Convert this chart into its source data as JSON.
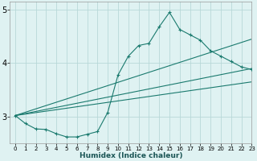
{
  "xlabel": "Humidex (Indice chaleur)",
  "xlim": [
    -0.5,
    23
  ],
  "ylim": [
    2.5,
    5.15
  ],
  "yticks": [
    3,
    4,
    5
  ],
  "xticks": [
    0,
    1,
    2,
    3,
    4,
    5,
    6,
    7,
    8,
    9,
    10,
    11,
    12,
    13,
    14,
    15,
    16,
    17,
    18,
    19,
    20,
    21,
    22,
    23
  ],
  "bg_color": "#dff2f2",
  "grid_color": "#b8d8d8",
  "line_color": "#1a7a6e",
  "series1_x": [
    0,
    1,
    2,
    3,
    4,
    5,
    6,
    7,
    8,
    9,
    10,
    11,
    12,
    13,
    14,
    15,
    16,
    17,
    18,
    19,
    20,
    21,
    22,
    23
  ],
  "series1_y": [
    3.02,
    2.87,
    2.77,
    2.76,
    2.68,
    2.62,
    2.62,
    2.67,
    2.72,
    3.08,
    3.78,
    4.13,
    4.33,
    4.37,
    4.68,
    4.95,
    4.63,
    4.53,
    4.43,
    4.23,
    4.13,
    4.03,
    3.93,
    3.88
  ],
  "line2_x": [
    0,
    23
  ],
  "line2_y": [
    3.02,
    3.9
  ],
  "line3_x": [
    0,
    23
  ],
  "line3_y": [
    3.02,
    4.45
  ],
  "line4_x": [
    0,
    23
  ],
  "line4_y": [
    3.02,
    3.65
  ]
}
